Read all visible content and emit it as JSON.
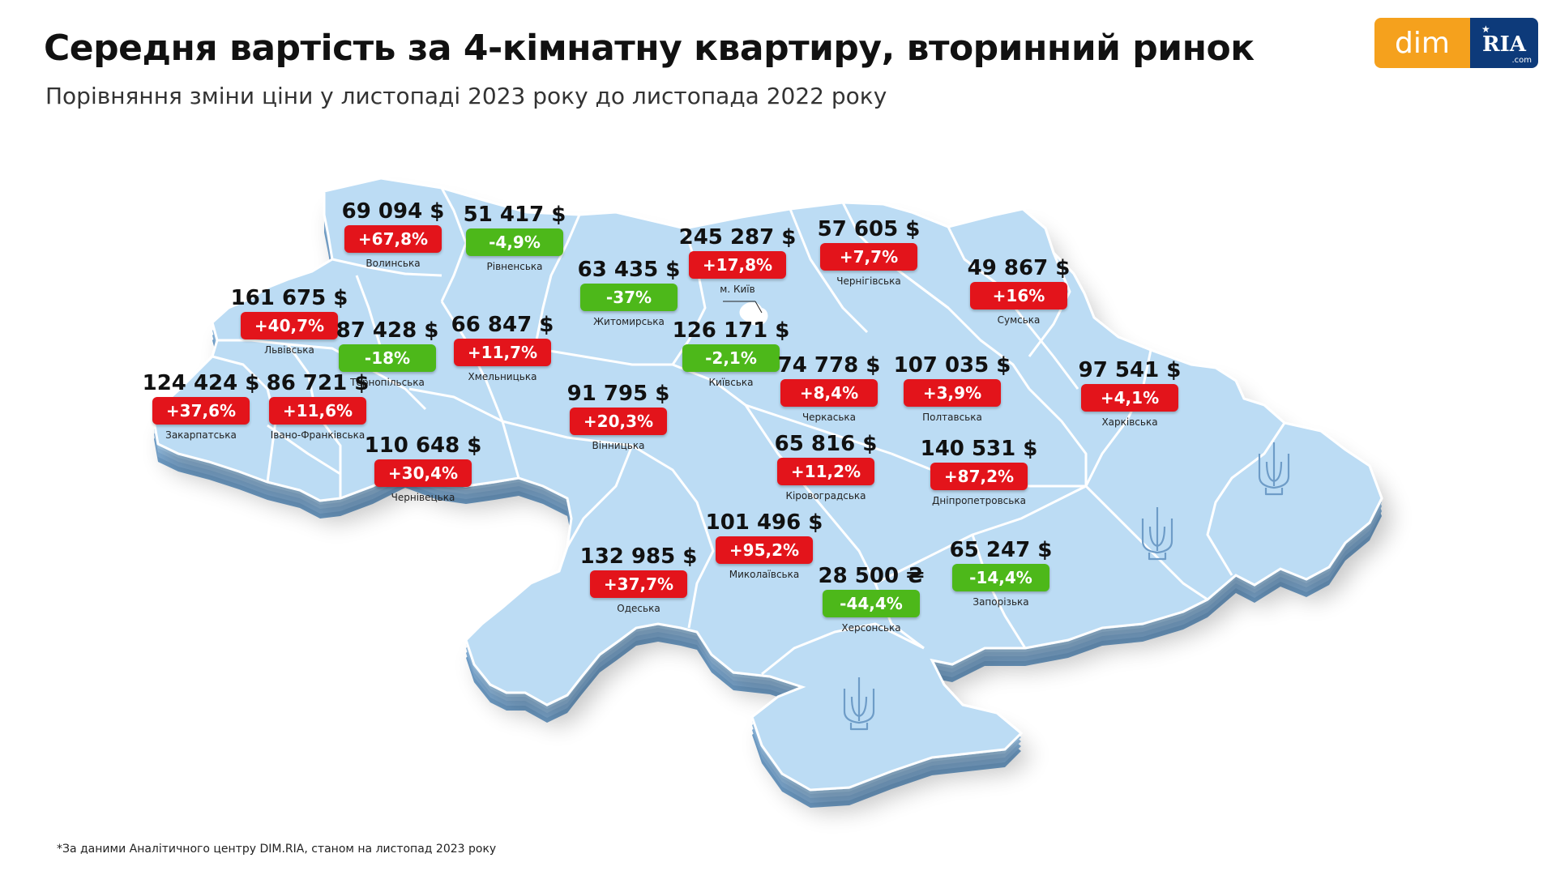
{
  "title": "Середня вартість за 4-кімнатну квартиру, вторинний ринок",
  "subtitle": "Порівняння зміни ціни у листопаді 2023 року до листопада 2022 року",
  "logo": {
    "dim": "dim",
    "ria": "RIA",
    "com": ".com"
  },
  "footnote": "*За даними Аналітичного центру DIM.RIA, станом на листопад 2023 року",
  "colors": {
    "increase": "#e3141b",
    "decrease": "#4db81a",
    "map_fill": "#b9dcf5",
    "map_side": "#8fb8dc",
    "map_border": "#ffffff"
  },
  "emblem_icon": "trident-icon",
  "kyiv_city_icon": "kyiv-city-shape-icon",
  "regions": [
    {
      "id": "volynska",
      "name": "Волинська",
      "price": "69 094 $",
      "change": "+67,8%",
      "trend": "up"
    },
    {
      "id": "rivnenska",
      "name": "Рівненська",
      "price": "51 417 $",
      "change": "-4,9%",
      "trend": "down"
    },
    {
      "id": "kyiv-city",
      "name": "м. Київ",
      "price": "245 287 $",
      "change": "+17,8%",
      "trend": "up"
    },
    {
      "id": "chernihivska",
      "name": "Чернігівська",
      "price": "57 605 $",
      "change": "+7,7%",
      "trend": "up"
    },
    {
      "id": "zhytomyrska",
      "name": "Житомирська",
      "price": "63 435 $",
      "change": "-37%",
      "trend": "down"
    },
    {
      "id": "sumska",
      "name": "Сумська",
      "price": "49 867 $",
      "change": "+16%",
      "trend": "up"
    },
    {
      "id": "lvivska",
      "name": "Львівська",
      "price": "161 675 $",
      "change": "+40,7%",
      "trend": "up"
    },
    {
      "id": "ternopilska",
      "name": "Тернопільська",
      "price": "87 428 $",
      "change": "-18%",
      "trend": "down"
    },
    {
      "id": "khmelnytska",
      "name": "Хмельницька",
      "price": "66 847 $",
      "change": "+11,7%",
      "trend": "up"
    },
    {
      "id": "kyivska",
      "name": "Київська",
      "price": "126 171 $",
      "change": "-2,1%",
      "trend": "down"
    },
    {
      "id": "zakarpatska",
      "name": "Закарпатська",
      "price": "124 424 $",
      "change": "+37,6%",
      "trend": "up"
    },
    {
      "id": "ivano-frankivska",
      "name": "Івано-Франківська",
      "price": "86 721 $",
      "change": "+11,6%",
      "trend": "up"
    },
    {
      "id": "vinnytska",
      "name": "Вінницька",
      "price": "91 795 $",
      "change": "+20,3%",
      "trend": "up"
    },
    {
      "id": "cherkaska",
      "name": "Черкаська",
      "price": "74 778 $",
      "change": "+8,4%",
      "trend": "up"
    },
    {
      "id": "poltavska",
      "name": "Полтавська",
      "price": "107 035 $",
      "change": "+3,9%",
      "trend": "up"
    },
    {
      "id": "kharkivska",
      "name": "Харківська",
      "price": "97 541 $",
      "change": "+4,1%",
      "trend": "up"
    },
    {
      "id": "chernivetska",
      "name": "Чернівецька",
      "price": "110 648 $",
      "change": "+30,4%",
      "trend": "up"
    },
    {
      "id": "kirovohradska",
      "name": "Кіровоградська",
      "price": "65 816 $",
      "change": "+11,2%",
      "trend": "up"
    },
    {
      "id": "dnipropetrovska",
      "name": "Дніпропетровська",
      "price": "140 531 $",
      "change": "+87,2%",
      "trend": "up"
    },
    {
      "id": "mykolaivska",
      "name": "Миколаївська",
      "price": "101 496 $",
      "change": "+95,2%",
      "trend": "up"
    },
    {
      "id": "odeska",
      "name": "Одеська",
      "price": "132 985 $",
      "change": "+37,7%",
      "trend": "up"
    },
    {
      "id": "khersonska",
      "name": "Херсонська",
      "price": "28 500 ₴",
      "change": "-44,4%",
      "trend": "down"
    },
    {
      "id": "zaporizka",
      "name": "Запорізька",
      "price": "65 247 $",
      "change": "-14,4%",
      "trend": "down"
    }
  ]
}
